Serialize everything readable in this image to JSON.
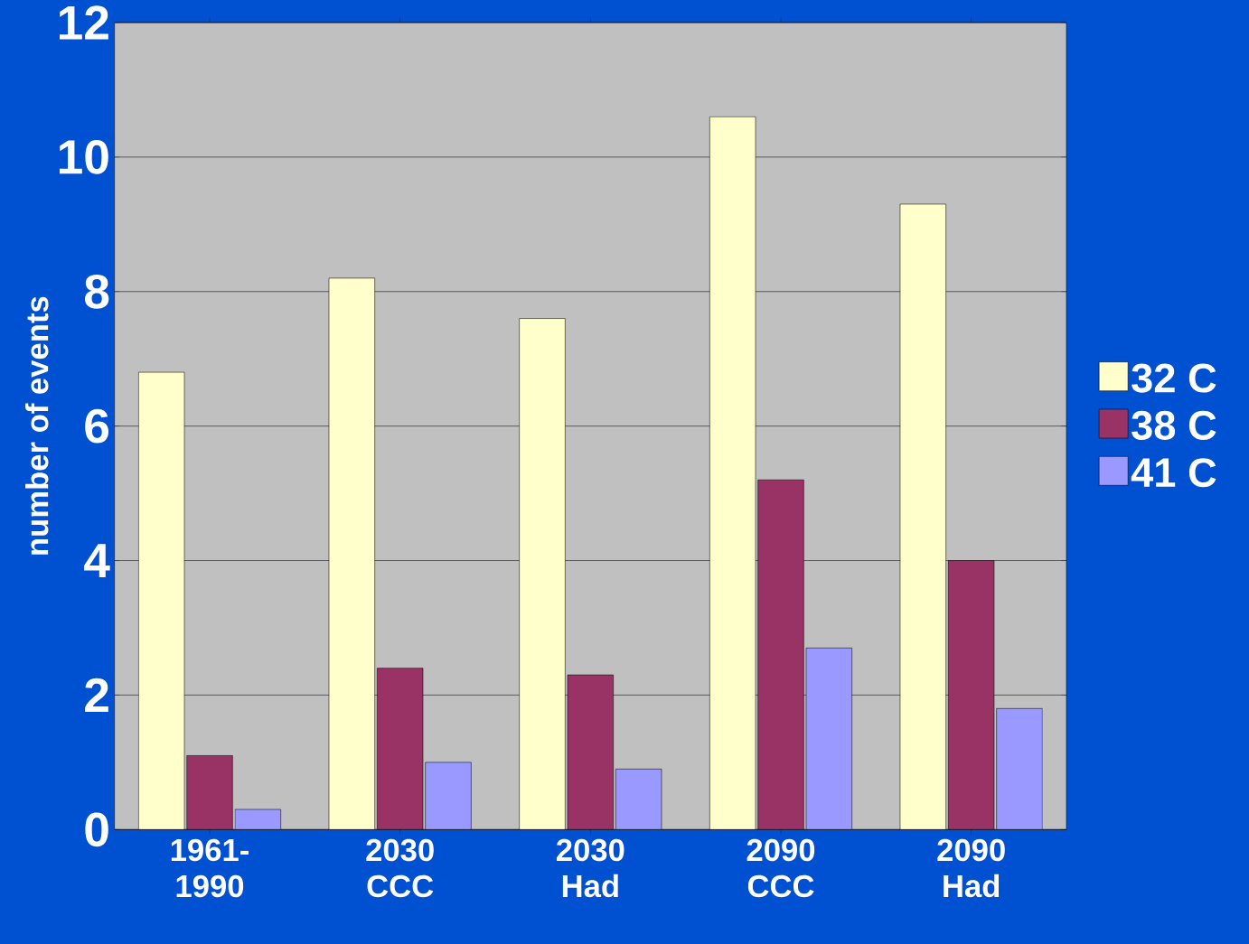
{
  "chart_data": {
    "type": "bar",
    "ylabel": "number of events",
    "categories": [
      "1961-1990",
      "2030 CCC",
      "2030 Had",
      "2090 CCC",
      "2090 Had"
    ],
    "series": [
      {
        "name": "32 C",
        "color": "#ffffcc",
        "values": [
          6.8,
          8.2,
          7.6,
          10.6,
          9.3
        ]
      },
      {
        "name": "38 C",
        "color": "#993366",
        "values": [
          1.1,
          2.4,
          2.3,
          5.2,
          4.0
        ]
      },
      {
        "name": "41 C",
        "color": "#9999ff",
        "values": [
          0.3,
          1.0,
          0.9,
          2.7,
          1.8
        ]
      }
    ],
    "ylim": [
      0,
      12
    ],
    "yticks": [
      0,
      2,
      4,
      6,
      8,
      10,
      12
    ],
    "grid": "y",
    "legend": "right"
  }
}
